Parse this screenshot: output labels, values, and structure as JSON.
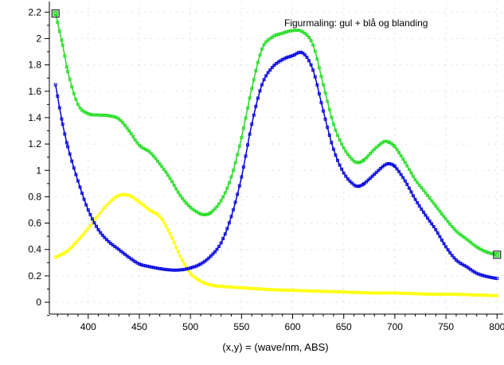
{
  "chart_data": {
    "type": "line",
    "title": "Figurmaling: gul + blå og blanding",
    "xlabel": "(x,y) = (wave/nm, ABS)",
    "ylabel": "",
    "xlim": [
      362,
      806
    ],
    "ylim": [
      -0.09,
      2.28
    ],
    "x_ticks": [
      400,
      450,
      500,
      550,
      600,
      650,
      700,
      750,
      800
    ],
    "y_ticks": [
      0,
      0.2,
      0.4,
      0.6,
      0.8,
      1,
      1.2,
      1.4,
      1.6,
      1.8,
      2,
      2.2
    ],
    "grid": true,
    "legend": "none",
    "series": [
      {
        "name": "gul",
        "color": "#ffff00",
        "x": [
          368,
          380,
          390,
          400,
          410,
          420,
          430,
          440,
          450,
          460,
          470,
          480,
          490,
          500,
          510,
          520,
          540,
          560,
          580,
          600,
          620,
          640,
          660,
          680,
          700,
          720,
          740,
          760,
          780,
          800
        ],
        "y": [
          0.34,
          0.39,
          0.47,
          0.56,
          0.66,
          0.75,
          0.81,
          0.81,
          0.76,
          0.7,
          0.65,
          0.52,
          0.35,
          0.22,
          0.16,
          0.13,
          0.115,
          0.105,
          0.095,
          0.09,
          0.085,
          0.08,
          0.075,
          0.07,
          0.07,
          0.065,
          0.06,
          0.06,
          0.055,
          0.05
        ]
      },
      {
        "name": "blå",
        "color": "#0000dd",
        "x": [
          368,
          375,
          380,
          390,
          400,
          410,
          420,
          430,
          440,
          450,
          460,
          470,
          480,
          490,
          500,
          510,
          520,
          530,
          540,
          550,
          560,
          570,
          580,
          590,
          600,
          610,
          620,
          630,
          640,
          650,
          660,
          665,
          670,
          680,
          690,
          695,
          700,
          710,
          720,
          730,
          740,
          750,
          760,
          770,
          780,
          790,
          800
        ],
        "y": [
          1.65,
          1.35,
          1.18,
          0.92,
          0.7,
          0.55,
          0.46,
          0.4,
          0.34,
          0.29,
          0.27,
          0.255,
          0.245,
          0.245,
          0.26,
          0.29,
          0.35,
          0.45,
          0.65,
          0.95,
          1.35,
          1.65,
          1.78,
          1.84,
          1.87,
          1.89,
          1.76,
          1.45,
          1.16,
          0.98,
          0.89,
          0.88,
          0.9,
          0.97,
          1.04,
          1.05,
          1.03,
          0.92,
          0.78,
          0.66,
          0.55,
          0.42,
          0.32,
          0.27,
          0.22,
          0.195,
          0.18
        ]
      },
      {
        "name": "blanding",
        "color": "#22dd22",
        "x": [
          368,
          375,
          380,
          390,
          400,
          410,
          420,
          430,
          440,
          450,
          460,
          470,
          480,
          490,
          500,
          510,
          515,
          520,
          530,
          540,
          550,
          560,
          570,
          580,
          590,
          600,
          610,
          620,
          630,
          640,
          650,
          660,
          665,
          670,
          680,
          690,
          695,
          700,
          710,
          720,
          730,
          740,
          750,
          760,
          770,
          780,
          790,
          800
        ],
        "y": [
          2.19,
          1.95,
          1.75,
          1.5,
          1.43,
          1.42,
          1.415,
          1.39,
          1.3,
          1.19,
          1.14,
          1.05,
          0.94,
          0.81,
          0.72,
          0.67,
          0.665,
          0.68,
          0.77,
          0.95,
          1.25,
          1.62,
          1.92,
          2.01,
          2.04,
          2.06,
          2.05,
          1.95,
          1.65,
          1.35,
          1.17,
          1.07,
          1.06,
          1.08,
          1.16,
          1.22,
          1.21,
          1.18,
          1.06,
          0.93,
          0.83,
          0.73,
          0.63,
          0.54,
          0.48,
          0.42,
          0.38,
          0.36
        ]
      }
    ],
    "end_markers": [
      {
        "series": "blanding",
        "x": 368,
        "y": 2.19
      },
      {
        "series": "blanding",
        "x": 800,
        "y": 0.36
      }
    ]
  }
}
